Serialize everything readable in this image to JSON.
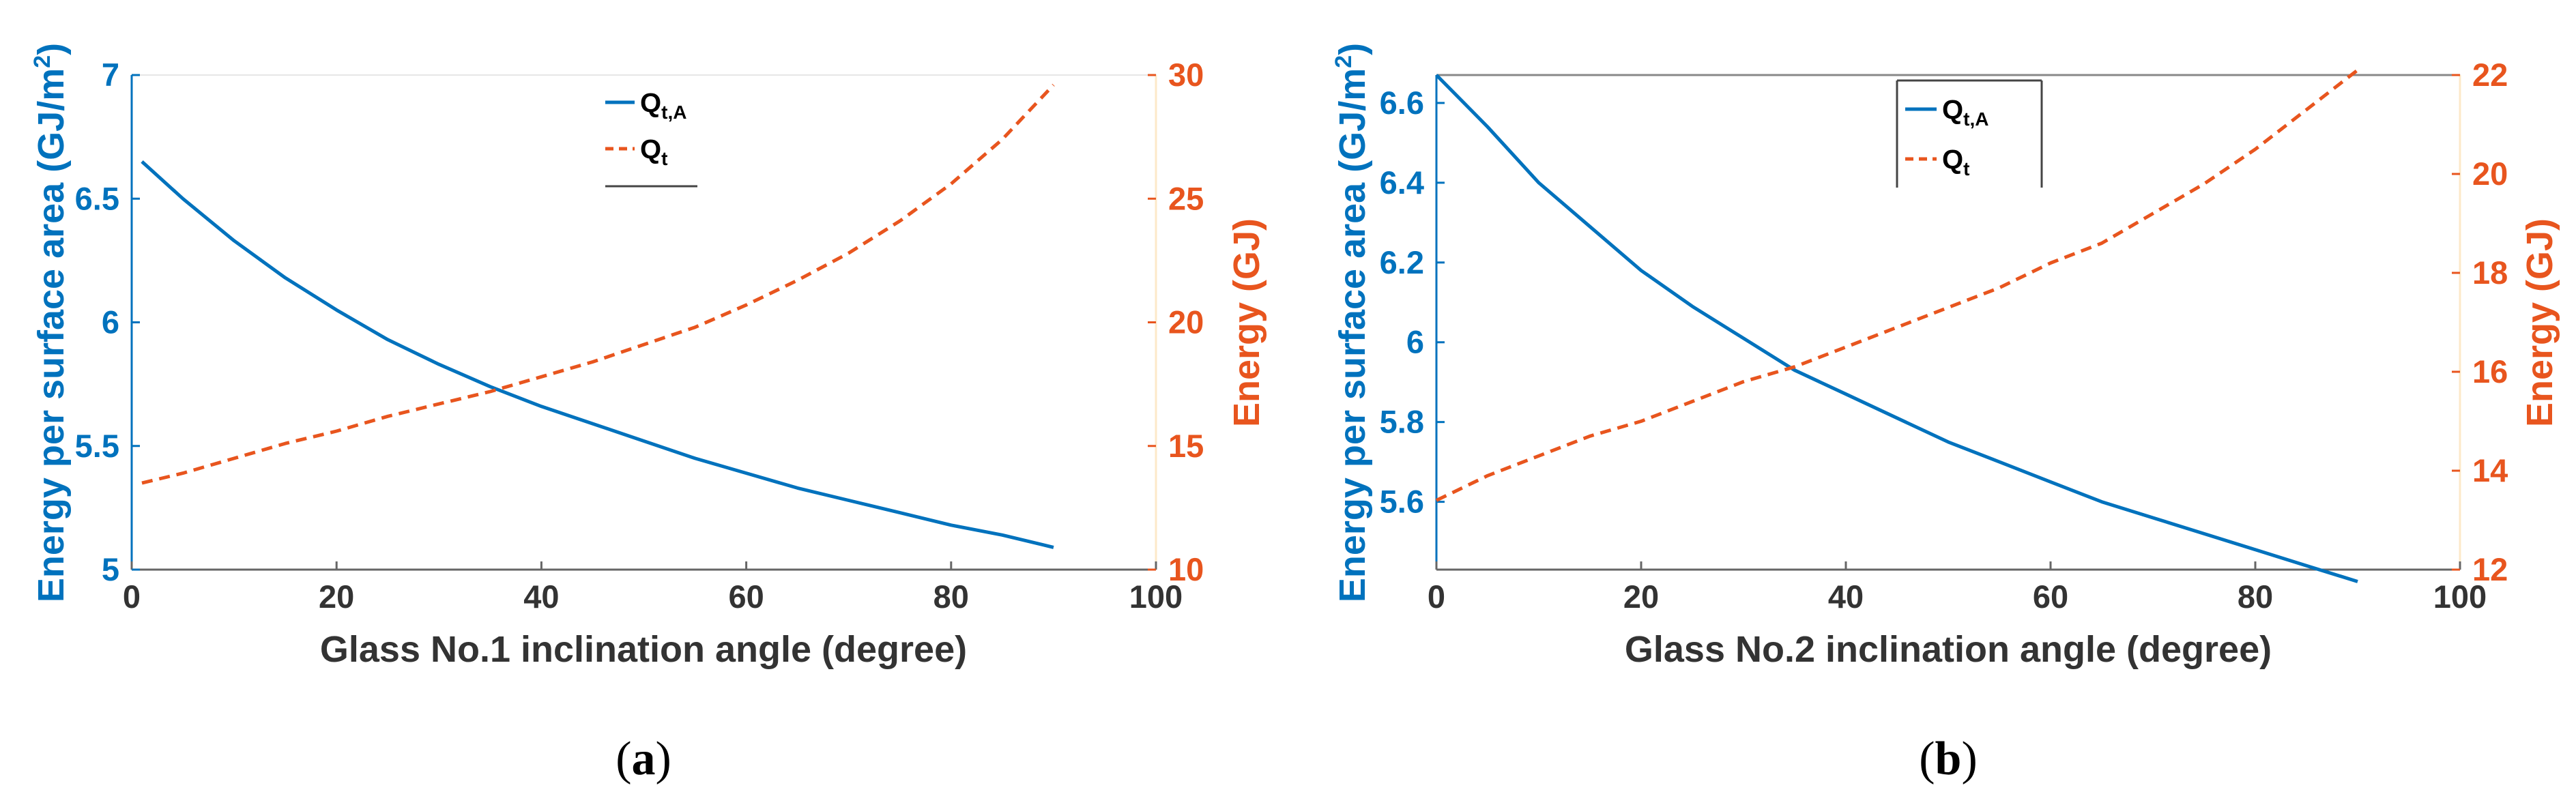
{
  "chart_data": [
    {
      "type": "line",
      "x_label": "Glass No.1 inclination angle (degree)",
      "y_label_left": "Energy per surface area (GJ/m",
      "y_label_left_sup": "2",
      "y_label_left_close": ")",
      "y_label_right": "Energy (GJ)",
      "x_ticks": [
        "0",
        "20",
        "40",
        "60",
        "80",
        "100"
      ],
      "y_left_ticks": [
        "5",
        "5.5",
        "6",
        "6.5",
        "7"
      ],
      "y_right_ticks": [
        "10",
        "15",
        "20",
        "25",
        "30"
      ],
      "xlim": [
        0,
        100
      ],
      "ylim_left": [
        5,
        7
      ],
      "ylim_right": [
        10,
        30
      ],
      "legend": [
        {
          "main": "Q",
          "sub": "t,A",
          "style": "solid",
          "color": "#0072BD"
        },
        {
          "main": "Q",
          "sub": "t",
          "style": "dashed",
          "color": "#E8551E"
        }
      ],
      "caption_left": "(",
      "caption_letter": "a",
      "caption_right": ")",
      "series": [
        {
          "name": "Qt,A",
          "axis": "left",
          "color": "#0072BD",
          "dashed": false,
          "x": [
            1,
            5,
            10,
            15,
            20,
            25,
            30,
            35,
            40,
            45,
            50,
            55,
            60,
            65,
            70,
            75,
            80,
            85,
            90
          ],
          "y": [
            6.65,
            6.5,
            6.33,
            6.18,
            6.05,
            5.93,
            5.83,
            5.74,
            5.66,
            5.59,
            5.52,
            5.45,
            5.39,
            5.33,
            5.28,
            5.23,
            5.18,
            5.14,
            5.09
          ]
        },
        {
          "name": "Qt",
          "axis": "right",
          "color": "#E8551E",
          "dashed": true,
          "x": [
            1,
            5,
            10,
            15,
            20,
            25,
            30,
            35,
            40,
            45,
            50,
            55,
            60,
            65,
            70,
            75,
            80,
            85,
            90
          ],
          "y": [
            13.5,
            13.9,
            14.5,
            15.1,
            15.6,
            16.2,
            16.7,
            17.2,
            17.8,
            18.4,
            19.1,
            19.8,
            20.7,
            21.7,
            22.8,
            24.1,
            25.6,
            27.4,
            29.6
          ]
        }
      ]
    },
    {
      "type": "line",
      "x_label": "Glass No.2 inclination angle (degree)",
      "y_label_left": "Energy per surface area (GJ/m",
      "y_label_left_sup": "2",
      "y_label_left_close": ")",
      "y_label_right": "Energy (GJ)",
      "x_ticks": [
        "0",
        "20",
        "40",
        "60",
        "80",
        "100"
      ],
      "y_left_ticks": [
        "5.6",
        "5.8",
        "6",
        "6.2",
        "6.4",
        "6.6"
      ],
      "y_right_ticks": [
        "12",
        "14",
        "16",
        "18",
        "20",
        "22"
      ],
      "xlim": [
        0,
        100
      ],
      "ylim_left": [
        5.43,
        6.67
      ],
      "ylim_right": [
        12,
        22
      ],
      "legend": [
        {
          "main": "Q",
          "sub": "t,A",
          "style": "solid",
          "color": "#0072BD"
        },
        {
          "main": "Q",
          "sub": "t",
          "style": "dashed",
          "color": "#E8551E"
        }
      ],
      "caption_left": "(",
      "caption_letter": "b",
      "caption_right": ")",
      "series": [
        {
          "name": "Qt,A",
          "axis": "left",
          "color": "#0072BD",
          "dashed": false,
          "x": [
            0,
            5,
            10,
            15,
            20,
            25,
            30,
            35,
            40,
            45,
            50,
            55,
            60,
            65,
            70,
            75,
            80,
            85,
            90
          ],
          "y": [
            6.67,
            6.54,
            6.4,
            6.29,
            6.18,
            6.09,
            6.01,
            5.93,
            5.87,
            5.81,
            5.75,
            5.7,
            5.65,
            5.6,
            5.56,
            5.52,
            5.48,
            5.44,
            5.4
          ]
        },
        {
          "name": "Qt",
          "axis": "right",
          "color": "#E8551E",
          "dashed": true,
          "x": [
            0,
            5,
            10,
            15,
            20,
            25,
            30,
            35,
            40,
            45,
            50,
            55,
            60,
            65,
            70,
            75,
            80,
            85,
            90
          ],
          "y": [
            13.4,
            13.9,
            14.3,
            14.7,
            15.0,
            15.4,
            15.8,
            16.1,
            16.5,
            16.9,
            17.3,
            17.7,
            18.2,
            18.6,
            19.2,
            19.8,
            20.5,
            21.3,
            22.1
          ]
        }
      ]
    }
  ]
}
